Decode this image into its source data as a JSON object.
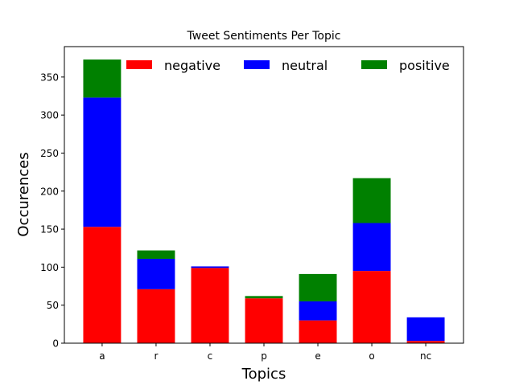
{
  "chart_data": {
    "type": "bar",
    "stacked": true,
    "title": "Tweet Sentiments Per Topic",
    "xlabel": "Topics",
    "ylabel": "Occurences",
    "categories": [
      "a",
      "r",
      "c",
      "p",
      "e",
      "o",
      "nc"
    ],
    "series": [
      {
        "name": "negative",
        "color": "#ff0000",
        "values": [
          153,
          71,
          99,
          59,
          30,
          95,
          3
        ]
      },
      {
        "name": "neutral",
        "color": "#0000ff",
        "values": [
          170,
          40,
          2,
          0,
          25,
          63,
          31
        ]
      },
      {
        "name": "positive",
        "color": "#008000",
        "values": [
          50,
          11,
          0,
          3,
          36,
          59,
          0
        ]
      }
    ],
    "ylim": [
      0,
      390
    ],
    "yticks": [
      0,
      50,
      100,
      150,
      200,
      250,
      300,
      350
    ],
    "legend_position": "top",
    "grid": false
  }
}
